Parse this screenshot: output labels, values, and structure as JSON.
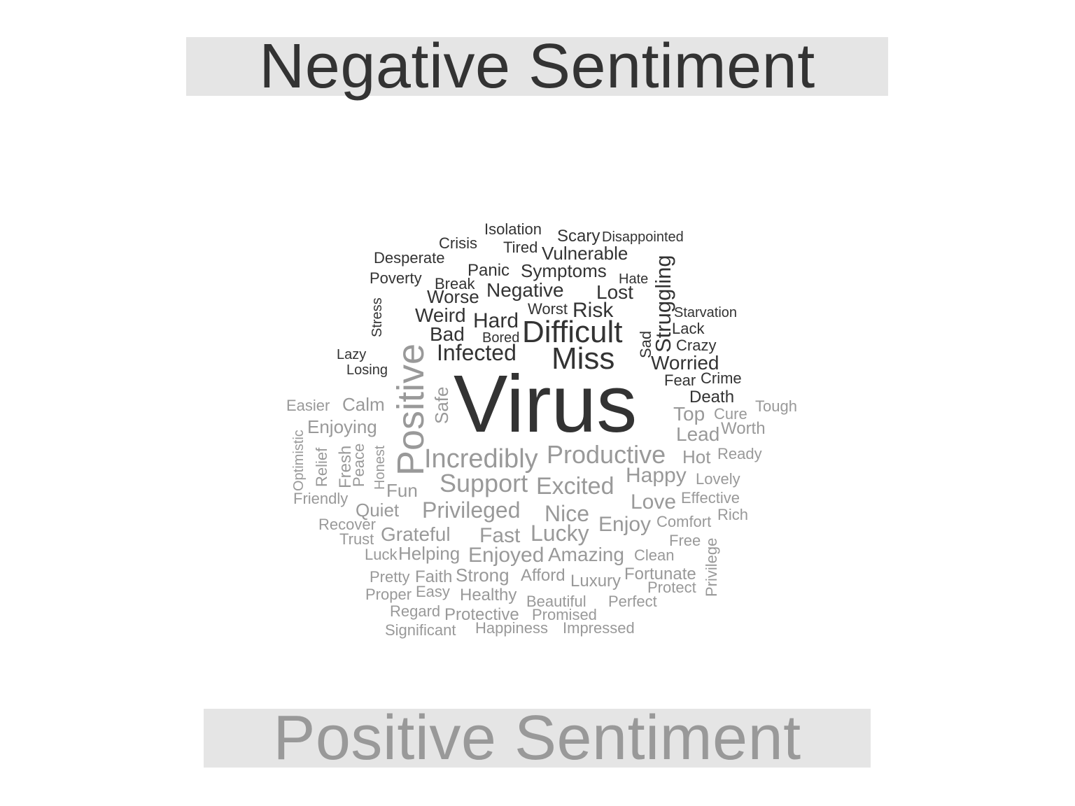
{
  "chart_data": {
    "type": "wordcloud",
    "groups": [
      {
        "name": "Negative Sentiment",
        "color": "#333333",
        "words": [
          "Virus",
          "Difficult",
          "Miss",
          "Infected",
          "Struggling",
          "Worried",
          "Hard",
          "Weird",
          "Bad",
          "Risk",
          "Negative",
          "Symptoms",
          "Vulnerable",
          "Lost",
          "Panic",
          "Worse",
          "Isolation",
          "Scary",
          "Disappointed",
          "Crisis",
          "Tired",
          "Desperate",
          "Poverty",
          "Break",
          "Hate",
          "Stress",
          "Worst",
          "Bored",
          "Starvation",
          "Lack",
          "Crazy",
          "Sad",
          "Lazy",
          "Losing",
          "Fear",
          "Crime",
          "Death"
        ]
      },
      {
        "name": "Positive Sentiment",
        "color": "#999999",
        "words": [
          "Positive",
          "Incredibly",
          "Productive",
          "Support",
          "Excited",
          "Privileged",
          "Happy",
          "Nice",
          "Lucky",
          "Fast",
          "Love",
          "Enjoy",
          "Enjoyed",
          "Amazing",
          "Grateful",
          "Calm",
          "Enjoying",
          "Top",
          "Lead",
          "Hot",
          "Fun",
          "Quiet",
          "Safe",
          "Fresh",
          "Peace",
          "Relief",
          "Honest",
          "Optimistic",
          "Easier",
          "Friendly",
          "Recover",
          "Trust",
          "Luck",
          "Helping",
          "Strong",
          "Afford",
          "Luxury",
          "Fortunate",
          "Protect",
          "Clean",
          "Free",
          "Comfort",
          "Effective",
          "Lovely",
          "Ready",
          "Rich",
          "Worth",
          "Cure",
          "Tough",
          "Pretty",
          "Faith",
          "Proper",
          "Easy",
          "Healthy",
          "Beautiful",
          "Perfect",
          "Regard",
          "Protective",
          "Promised",
          "Significant",
          "Happiness",
          "Impressed",
          "Privilege"
        ]
      }
    ]
  }
}
